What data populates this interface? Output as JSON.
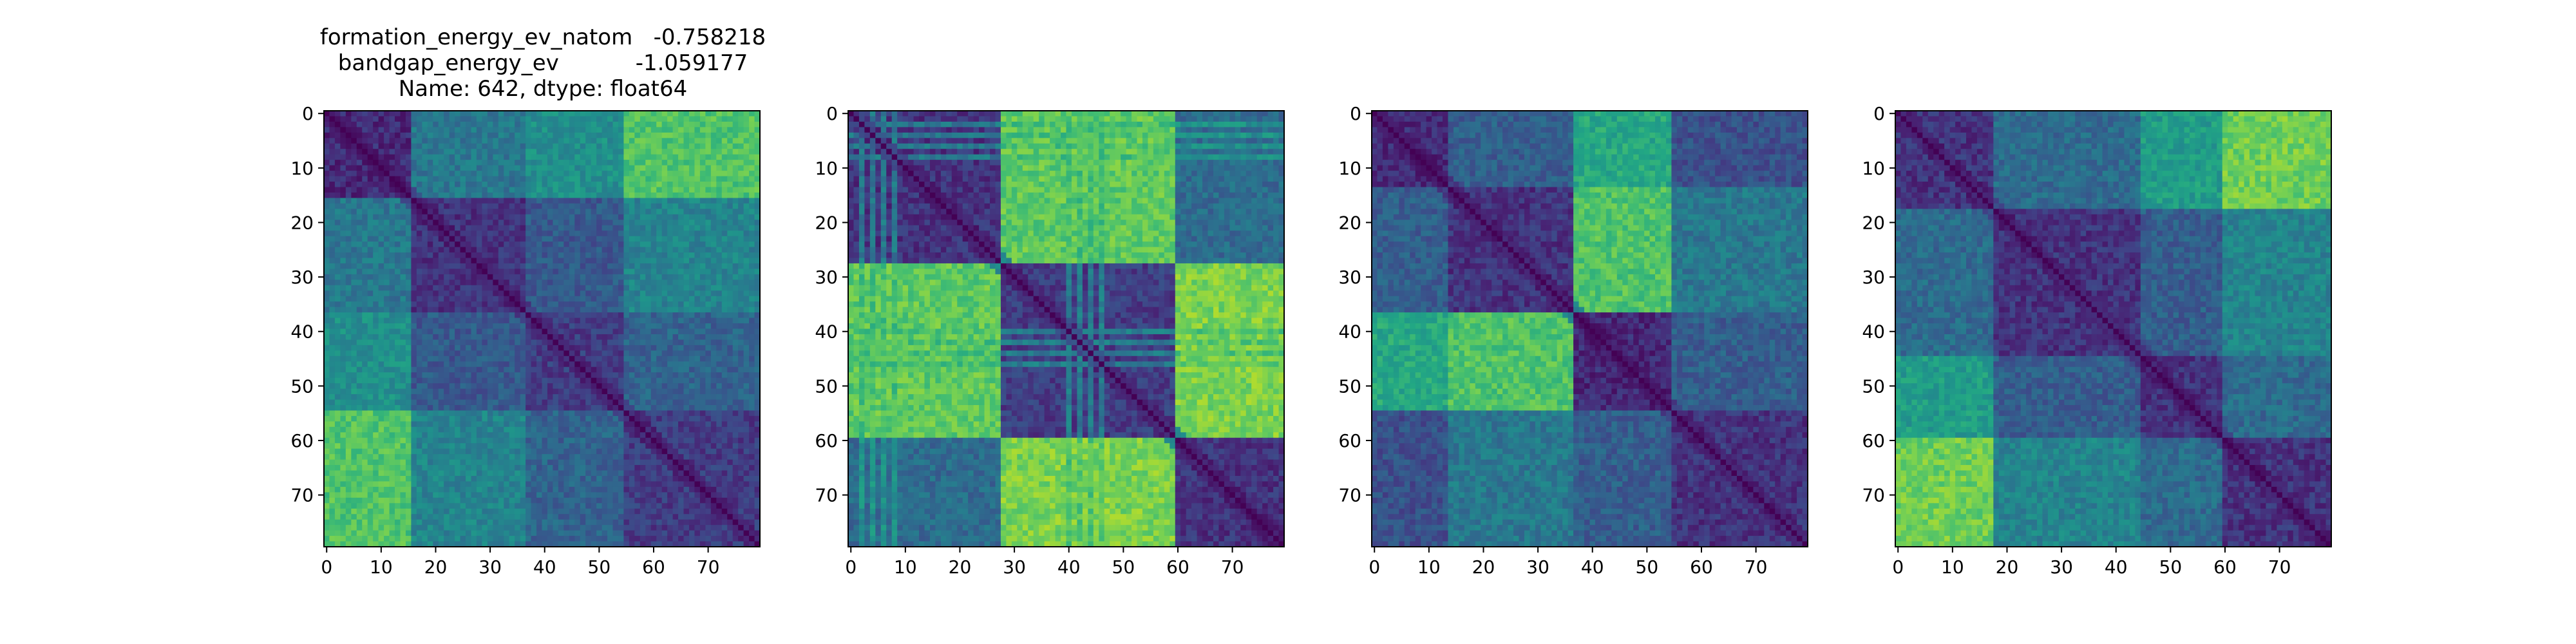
{
  "figure": {
    "title_lines": [
      "formation_energy_ev_natom   -0.758218",
      "bandgap_energy_ev           -1.059177",
      "Name: 642, dtype: float64"
    ]
  },
  "chart_data": [
    {
      "type": "heatmap",
      "title": "",
      "colormap": "viridis",
      "n": 80,
      "x_ticks": [
        0,
        10,
        20,
        30,
        40,
        50,
        60,
        70
      ],
      "y_ticks": [
        0,
        10,
        20,
        30,
        40,
        50,
        60,
        70
      ],
      "xlim": [
        0,
        79
      ],
      "ylim": [
        79,
        0
      ],
      "diagonal_value": 0.0,
      "block_boundaries": [
        0,
        16,
        37,
        55,
        80
      ],
      "block_levels": [
        [
          0.12,
          0.4,
          0.5,
          0.72
        ],
        [
          0.4,
          0.15,
          0.28,
          0.45
        ],
        [
          0.5,
          0.28,
          0.18,
          0.32
        ],
        [
          0.72,
          0.45,
          0.32,
          0.18
        ]
      ],
      "noise": 0.08
    },
    {
      "type": "heatmap",
      "title": "",
      "colormap": "viridis",
      "n": 80,
      "x_ticks": [
        0,
        10,
        20,
        30,
        40,
        50,
        60,
        70
      ],
      "y_ticks": [
        0,
        10,
        20,
        30,
        40,
        50,
        60,
        70
      ],
      "xlim": [
        0,
        79
      ],
      "ylim": [
        79,
        0
      ],
      "diagonal_value": 0.0,
      "block_boundaries": [
        0,
        28,
        60,
        80
      ],
      "block_levels": [
        [
          0.15,
          0.75,
          0.35
        ],
        [
          0.75,
          0.18,
          0.8
        ],
        [
          0.35,
          0.8,
          0.15
        ]
      ],
      "stripe_indices": [
        2,
        4,
        6,
        8,
        40,
        42,
        44,
        46
      ],
      "stripe_level": 0.45,
      "noise": 0.08
    },
    {
      "type": "heatmap",
      "title": "",
      "colormap": "viridis",
      "n": 80,
      "x_ticks": [
        0,
        10,
        20,
        30,
        40,
        50,
        60,
        70
      ],
      "y_ticks": [
        0,
        10,
        20,
        30,
        40,
        50,
        60,
        70
      ],
      "xlim": [
        0,
        79
      ],
      "ylim": [
        79,
        0
      ],
      "diagonal_value": 0.0,
      "block_boundaries": [
        0,
        14,
        37,
        55,
        80
      ],
      "block_levels": [
        [
          0.12,
          0.3,
          0.6,
          0.25
        ],
        [
          0.3,
          0.15,
          0.72,
          0.4
        ],
        [
          0.6,
          0.72,
          0.12,
          0.3
        ],
        [
          0.25,
          0.4,
          0.3,
          0.15
        ]
      ],
      "noise": 0.08
    },
    {
      "type": "heatmap",
      "title": "",
      "colormap": "viridis",
      "n": 80,
      "x_ticks": [
        0,
        10,
        20,
        30,
        40,
        50,
        60,
        70
      ],
      "y_ticks": [
        0,
        10,
        20,
        30,
        40,
        50,
        60,
        70
      ],
      "xlim": [
        0,
        79
      ],
      "ylim": [
        79,
        0
      ],
      "diagonal_value": 0.0,
      "block_boundaries": [
        0,
        18,
        45,
        60,
        80
      ],
      "block_levels": [
        [
          0.15,
          0.35,
          0.55,
          0.78
        ],
        [
          0.35,
          0.15,
          0.3,
          0.45
        ],
        [
          0.55,
          0.3,
          0.15,
          0.35
        ],
        [
          0.78,
          0.45,
          0.35,
          0.15
        ]
      ],
      "noise": 0.08
    }
  ]
}
